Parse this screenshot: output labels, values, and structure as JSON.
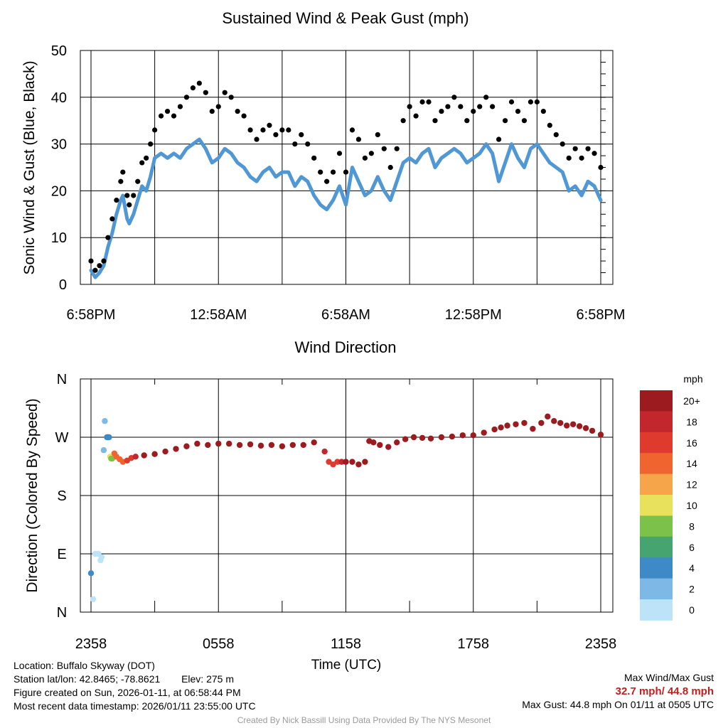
{
  "chart_data": [
    {
      "type": "line",
      "title": "Sustained Wind & Peak Gust (mph)",
      "ylabel": "Sonic Wind & Gust (Blue, Black)",
      "xlabel": "",
      "ylim": [
        0,
        50
      ],
      "yticks": [
        0,
        10,
        20,
        30,
        40,
        50
      ],
      "xticks": [
        "6:58PM",
        "12:58AM",
        "6:58AM",
        "12:58PM",
        "6:58PM"
      ],
      "xrange_hours": [
        0,
        24
      ],
      "grid": true,
      "series": [
        {
          "name": "Sustained Wind",
          "color": "#4f97d5",
          "style": "thick-line",
          "x": [
            0,
            0.2,
            0.4,
            0.6,
            0.8,
            1.0,
            1.2,
            1.4,
            1.5,
            1.7,
            1.8,
            2.0,
            2.2,
            2.4,
            2.6,
            2.8,
            3.0,
            3.3,
            3.6,
            3.9,
            4.2,
            4.5,
            4.8,
            5.1,
            5.4,
            5.7,
            6.0,
            6.3,
            6.6,
            6.9,
            7.2,
            7.5,
            7.8,
            8.1,
            8.4,
            8.7,
            9.0,
            9.3,
            9.6,
            9.9,
            10.2,
            10.5,
            10.8,
            11.1,
            11.4,
            11.7,
            12.0,
            12.3,
            12.6,
            12.9,
            13.2,
            13.5,
            13.8,
            14.1,
            14.4,
            14.7,
            15.0,
            15.3,
            15.6,
            15.9,
            16.2,
            16.5,
            16.8,
            17.1,
            17.4,
            17.7,
            18.0,
            18.3,
            18.6,
            18.9,
            19.2,
            19.5,
            19.8,
            20.1,
            20.4,
            20.7,
            21.0,
            21.3,
            21.6,
            21.9,
            22.2,
            22.5,
            22.8,
            23.1,
            23.4,
            23.7,
            24.0
          ],
          "values": [
            3,
            1.5,
            2.5,
            4,
            8,
            11,
            15,
            18,
            19,
            14,
            13,
            15,
            18,
            21,
            20,
            23,
            27,
            28,
            27,
            28,
            27,
            29,
            30,
            31,
            29,
            26,
            27,
            29,
            28,
            26,
            25,
            23,
            22,
            24,
            25,
            23,
            24,
            24,
            21,
            23,
            22,
            19,
            17,
            16,
            18,
            21,
            17,
            25,
            22,
            19,
            20,
            23,
            20,
            18,
            22,
            26,
            27,
            26,
            28,
            29,
            25,
            27,
            28,
            29,
            28,
            26,
            27,
            28,
            30,
            28,
            22,
            26,
            30,
            27,
            25,
            29,
            30,
            28,
            26,
            25,
            24,
            20,
            21,
            19,
            22,
            21,
            18
          ]
        },
        {
          "name": "Peak Gust",
          "color": "#000000",
          "style": "dots",
          "x": [
            0,
            0.2,
            0.4,
            0.6,
            0.8,
            1.0,
            1.2,
            1.4,
            1.5,
            1.7,
            1.8,
            2.0,
            2.2,
            2.4,
            2.6,
            2.8,
            3.0,
            3.3,
            3.6,
            3.9,
            4.2,
            4.5,
            4.8,
            5.1,
            5.4,
            5.7,
            6.0,
            6.3,
            6.6,
            6.9,
            7.2,
            7.5,
            7.8,
            8.1,
            8.4,
            8.7,
            9.0,
            9.3,
            9.6,
            9.9,
            10.2,
            10.5,
            10.8,
            11.1,
            11.4,
            11.7,
            12.0,
            12.3,
            12.6,
            12.9,
            13.2,
            13.5,
            13.8,
            14.1,
            14.4,
            14.7,
            15.0,
            15.3,
            15.6,
            15.9,
            16.2,
            16.5,
            16.8,
            17.1,
            17.4,
            17.7,
            18.0,
            18.3,
            18.6,
            18.9,
            19.2,
            19.5,
            19.8,
            20.1,
            20.4,
            20.7,
            21.0,
            21.3,
            21.6,
            21.9,
            22.2,
            22.5,
            22.8,
            23.1,
            23.4,
            23.7,
            24.0
          ],
          "values": [
            5,
            3,
            4,
            5,
            10,
            14,
            18,
            22,
            24,
            19,
            17,
            19,
            22,
            26,
            27,
            30,
            33,
            36,
            37,
            36,
            38,
            40,
            42,
            43,
            41,
            37,
            38,
            41,
            40,
            37,
            36,
            33,
            31,
            33,
            34,
            32,
            33,
            33,
            30,
            32,
            30,
            27,
            24,
            22,
            24,
            28,
            24,
            33,
            31,
            27,
            28,
            32,
            29,
            25,
            29,
            35,
            38,
            36,
            39,
            39,
            35,
            37,
            38,
            40,
            38,
            35,
            37,
            38,
            40,
            38,
            31,
            35,
            39,
            37,
            35,
            39,
            39,
            37,
            34,
            32,
            30,
            27,
            29,
            27,
            29,
            28,
            25
          ]
        }
      ]
    },
    {
      "type": "scatter",
      "title": "Wind Direction",
      "ylabel": "Direction (Colored By Speed)",
      "xlabel": "Time (UTC)",
      "ylim": [
        0,
        360
      ],
      "yticks": [
        0,
        90,
        180,
        270,
        360
      ],
      "ytick_labels": [
        "N",
        "E",
        "S",
        "W",
        "N"
      ],
      "xticks": [
        "2358",
        "0558",
        "1158",
        "1758",
        "2358"
      ],
      "xrange_hours": [
        0,
        24
      ],
      "grid": true,
      "series": [
        {
          "name": "Direction",
          "x": [
            0.0,
            0.1,
            0.2,
            0.35,
            0.45,
            0.5,
            0.6,
            0.65,
            0.75,
            0.8,
            0.85,
            0.9,
            0.95,
            1.0,
            1.1,
            1.2,
            1.35,
            1.5,
            1.7,
            1.9,
            2.1,
            2.5,
            3.0,
            3.5,
            4.0,
            4.5,
            5.0,
            5.5,
            6.0,
            6.5,
            7.0,
            7.5,
            8.0,
            8.5,
            9.0,
            9.5,
            10.0,
            10.5,
            11.0,
            11.2,
            11.4,
            11.6,
            11.8,
            12.0,
            12.3,
            12.6,
            12.9,
            13.1,
            13.3,
            13.6,
            14.0,
            14.4,
            14.8,
            15.2,
            15.6,
            16.0,
            16.5,
            17.0,
            17.5,
            18.0,
            18.5,
            19.0,
            19.3,
            19.6,
            20.0,
            20.4,
            20.8,
            21.2,
            21.5,
            21.8,
            22.1,
            22.4,
            22.7,
            23.0,
            23.3,
            23.6,
            24.0
          ],
          "values": [
            60,
            20,
            90,
            90,
            80,
            85,
            250,
            295,
            270,
            270,
            270,
            240,
            237,
            237,
            245,
            240,
            236,
            232,
            234,
            238,
            240,
            242,
            244,
            248,
            252,
            256,
            260,
            258,
            260,
            260,
            258,
            259,
            257,
            258,
            256,
            258,
            258,
            262,
            248,
            232,
            228,
            232,
            232,
            232,
            232,
            228,
            232,
            264,
            262,
            258,
            255,
            262,
            267,
            270,
            269,
            268,
            270,
            271,
            273,
            273,
            277,
            282,
            285,
            288,
            290,
            292,
            283,
            292,
            302,
            295,
            292,
            288,
            290,
            287,
            284,
            280,
            274
          ],
          "speeds": [
            4,
            1,
            1,
            1,
            1,
            1,
            2,
            2,
            5,
            5,
            4,
            10,
            8,
            8,
            15,
            15,
            14,
            14,
            16,
            17,
            19,
            20,
            20,
            20,
            20,
            20,
            20,
            20,
            20,
            20,
            20,
            20,
            20,
            20,
            20,
            20,
            20,
            20,
            19,
            17,
            17,
            17,
            19,
            20,
            20,
            20,
            20,
            20,
            20,
            20,
            20,
            20,
            20,
            20,
            20,
            20,
            20,
            20,
            20,
            20,
            20,
            20,
            20,
            20,
            20,
            20,
            20,
            20,
            20,
            20,
            20,
            20,
            20,
            20,
            20,
            20,
            20
          ]
        }
      ],
      "colorbar": {
        "title": "mph",
        "labels": [
          "20+",
          "18",
          "16",
          "14",
          "12",
          "10",
          "8",
          "6",
          "4",
          "2",
          "0"
        ],
        "colors": [
          "#9b1b1f",
          "#c1272d",
          "#de3a2e",
          "#f0642f",
          "#f7a54a",
          "#e8e15b",
          "#7cc24a",
          "#45a46f",
          "#3e8ac6",
          "#7db8e6",
          "#bde3f8"
        ]
      }
    }
  ],
  "footer": {
    "location": "Location: Buffalo Skyway (DOT)",
    "station_latlon": "Station lat/lon: 42.8465; -78.8621",
    "elev": "Elev: 275 m",
    "created": "Figure created on Sun, 2026-01-11, at 06:58:44 PM",
    "recent": "Most recent data timestamp: 2026/01/11 23:55:00 UTC",
    "max_title": "Max Wind/Max Gust",
    "max_values": "32.7 mph/ 44.8 mph",
    "max_gust_note": "Max Gust: 44.8 mph On 01/11 at 0505 UTC",
    "credit": "Created By Nick Bassill Using Data Provided By The NYS Mesonet"
  }
}
